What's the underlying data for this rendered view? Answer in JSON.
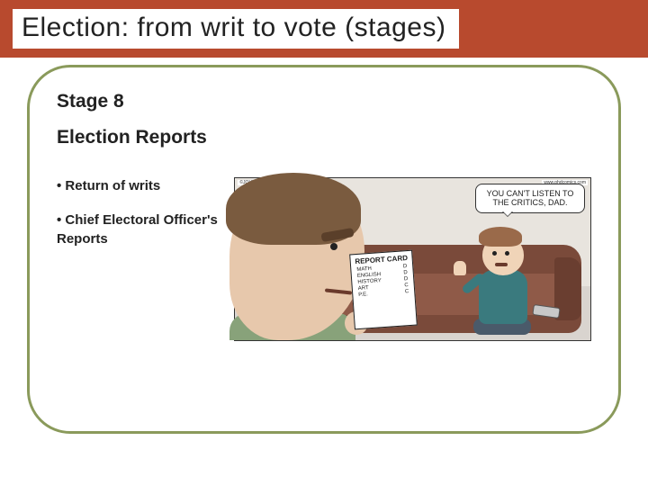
{
  "colors": {
    "header_bar": "#b84a2e",
    "frame_border": "#8a9a5b",
    "background": "#ffffff",
    "text": "#222222"
  },
  "title": "Election: from writ to vote (stages)",
  "stage": {
    "label": "Stage 8"
  },
  "subheading": "Election Reports",
  "bullets": [
    "Return of writs",
    "Chief Electoral Officer's Reports"
  ],
  "cartoon": {
    "speech_bubble": "YOU CAN'T LISTEN TO THE CRITICS, DAD.",
    "report_card": {
      "title": "REPORT CARD",
      "rows": [
        {
          "subject": "MATH",
          "grade": "D"
        },
        {
          "subject": "ENGLISH",
          "grade": "D"
        },
        {
          "subject": "HISTORY",
          "grade": "D"
        },
        {
          "subject": "ART",
          "grade": "C"
        },
        {
          "subject": "P.E.",
          "grade": "C"
        }
      ]
    },
    "credit_left": "©JOHN CAMPBELL · SEPT 24 2008",
    "credit_right": "www.phdcomics.com"
  }
}
